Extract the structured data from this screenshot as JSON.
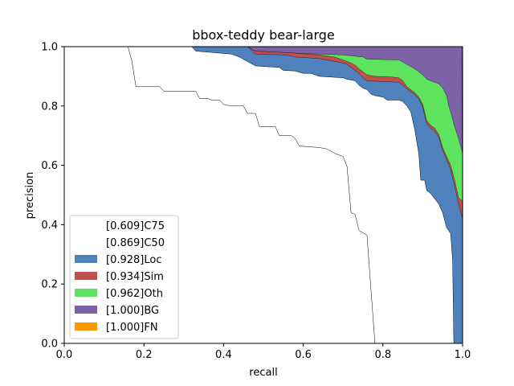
{
  "chart_data": {
    "type": "area",
    "title": "bbox-teddy bear-large",
    "xlabel": "recall",
    "ylabel": "precision",
    "xlim": [
      0,
      1
    ],
    "ylim": [
      0,
      1
    ],
    "xticks": [
      "0.0",
      "0.2",
      "0.4",
      "0.6",
      "0.8",
      "1.0"
    ],
    "yticks": [
      "0.0",
      "0.2",
      "0.4",
      "0.6",
      "0.8",
      "1.0"
    ],
    "legend_position": "lower-left",
    "grid": false,
    "series": [
      {
        "name": "[1.000]FN",
        "color": "#ff9900",
        "points": [
          [
            0,
            1
          ],
          [
            1,
            1
          ]
        ]
      },
      {
        "name": "[1.000]BG",
        "color": "#7d62a8",
        "points": [
          [
            0,
            1
          ],
          [
            0.46,
            1
          ],
          [
            0.998,
            1
          ],
          [
            0.999,
            0.64
          ],
          [
            1,
            0.64
          ],
          [
            1,
            0
          ]
        ]
      },
      {
        "name": "[0.962]Oth",
        "color": "#5ee35e",
        "points": [
          [
            0,
            1
          ],
          [
            0.46,
            1
          ],
          [
            0.48,
            0.985
          ],
          [
            0.56,
            0.98
          ],
          [
            0.58,
            0.978
          ],
          [
            0.64,
            0.975
          ],
          [
            0.7,
            0.972
          ],
          [
            0.73,
            0.968
          ],
          [
            0.75,
            0.965
          ],
          [
            0.76,
            0.958
          ],
          [
            0.84,
            0.955
          ],
          [
            0.85,
            0.948
          ],
          [
            0.86,
            0.94
          ],
          [
            0.87,
            0.933
          ],
          [
            0.88,
            0.925
          ],
          [
            0.89,
            0.915
          ],
          [
            0.9,
            0.905
          ],
          [
            0.91,
            0.89
          ],
          [
            0.94,
            0.875
          ],
          [
            0.95,
            0.86
          ],
          [
            0.96,
            0.835
          ],
          [
            0.965,
            0.8
          ],
          [
            0.97,
            0.78
          ],
          [
            0.98,
            0.73
          ],
          [
            0.99,
            0.69
          ],
          [
            1,
            0.64
          ]
        ]
      },
      {
        "name": "[0.934]Sim",
        "color": "#c0504d",
        "points": [
          [
            0,
            1
          ],
          [
            0.46,
            1
          ],
          [
            0.48,
            0.985
          ],
          [
            0.56,
            0.98
          ],
          [
            0.58,
            0.978
          ],
          [
            0.64,
            0.972
          ],
          [
            0.68,
            0.965
          ],
          [
            0.69,
            0.96
          ],
          [
            0.7,
            0.955
          ],
          [
            0.71,
            0.95
          ],
          [
            0.72,
            0.945
          ],
          [
            0.73,
            0.938
          ],
          [
            0.74,
            0.925
          ],
          [
            0.75,
            0.915
          ],
          [
            0.76,
            0.905
          ],
          [
            0.78,
            0.9
          ],
          [
            0.82,
            0.898
          ],
          [
            0.84,
            0.895
          ],
          [
            0.85,
            0.885
          ],
          [
            0.86,
            0.865
          ],
          [
            0.87,
            0.855
          ],
          [
            0.88,
            0.845
          ],
          [
            0.89,
            0.83
          ],
          [
            0.9,
            0.805
          ],
          [
            0.91,
            0.75
          ],
          [
            0.92,
            0.735
          ],
          [
            0.93,
            0.725
          ],
          [
            0.94,
            0.705
          ],
          [
            0.95,
            0.66
          ],
          [
            0.96,
            0.63
          ],
          [
            0.97,
            0.6
          ],
          [
            0.98,
            0.55
          ],
          [
            0.99,
            0.49
          ],
          [
            1,
            0.48
          ]
        ]
      },
      {
        "name": "[0.928]Loc",
        "color": "#4f81bd",
        "points": [
          [
            0,
            1
          ],
          [
            0.46,
            1
          ],
          [
            0.48,
            0.975
          ],
          [
            0.56,
            0.972
          ],
          [
            0.58,
            0.965
          ],
          [
            0.64,
            0.96
          ],
          [
            0.68,
            0.95
          ],
          [
            0.7,
            0.945
          ],
          [
            0.71,
            0.94
          ],
          [
            0.72,
            0.93
          ],
          [
            0.73,
            0.92
          ],
          [
            0.74,
            0.91
          ],
          [
            0.75,
            0.895
          ],
          [
            0.76,
            0.885
          ],
          [
            0.84,
            0.88
          ],
          [
            0.85,
            0.87
          ],
          [
            0.86,
            0.858
          ],
          [
            0.87,
            0.848
          ],
          [
            0.88,
            0.838
          ],
          [
            0.89,
            0.825
          ],
          [
            0.9,
            0.795
          ],
          [
            0.91,
            0.74
          ],
          [
            0.92,
            0.725
          ],
          [
            0.93,
            0.715
          ],
          [
            0.94,
            0.695
          ],
          [
            0.95,
            0.65
          ],
          [
            0.96,
            0.62
          ],
          [
            0.97,
            0.585
          ],
          [
            0.98,
            0.53
          ],
          [
            0.99,
            0.47
          ],
          [
            1,
            0.42
          ]
        ]
      },
      {
        "name": "[0.869]C50",
        "color": "#ffffff",
        "points": [
          [
            0,
            1
          ],
          [
            0.32,
            1
          ],
          [
            0.33,
            0.985
          ],
          [
            0.42,
            0.975
          ],
          [
            0.44,
            0.965
          ],
          [
            0.46,
            0.95
          ],
          [
            0.48,
            0.935
          ],
          [
            0.54,
            0.93
          ],
          [
            0.55,
            0.92
          ],
          [
            0.58,
            0.918
          ],
          [
            0.6,
            0.91
          ],
          [
            0.62,
            0.91
          ],
          [
            0.63,
            0.905
          ],
          [
            0.64,
            0.9
          ],
          [
            0.7,
            0.895
          ],
          [
            0.71,
            0.89
          ],
          [
            0.73,
            0.885
          ],
          [
            0.74,
            0.87
          ],
          [
            0.75,
            0.86
          ],
          [
            0.76,
            0.855
          ],
          [
            0.77,
            0.84
          ],
          [
            0.78,
            0.835
          ],
          [
            0.8,
            0.83
          ],
          [
            0.81,
            0.82
          ],
          [
            0.84,
            0.82
          ],
          [
            0.85,
            0.815
          ],
          [
            0.86,
            0.8
          ],
          [
            0.87,
            0.78
          ],
          [
            0.88,
            0.72
          ],
          [
            0.89,
            0.64
          ],
          [
            0.895,
            0.55
          ],
          [
            0.905,
            0.55
          ],
          [
            0.91,
            0.515
          ],
          [
            0.92,
            0.505
          ],
          [
            0.94,
            0.47
          ],
          [
            0.95,
            0.44
          ],
          [
            0.96,
            0.39
          ],
          [
            0.97,
            0.37
          ],
          [
            0.975,
            0.28
          ],
          [
            0.978,
            0.0
          ],
          [
            1,
            0
          ]
        ]
      },
      {
        "name": "[0.609]C75",
        "color": "#ffffff",
        "points": [
          [
            0,
            1
          ],
          [
            0.16,
            1
          ],
          [
            0.17,
            0.95
          ],
          [
            0.18,
            0.865
          ],
          [
            0.24,
            0.865
          ],
          [
            0.25,
            0.85
          ],
          [
            0.33,
            0.85
          ],
          [
            0.34,
            0.825
          ],
          [
            0.36,
            0.825
          ],
          [
            0.37,
            0.82
          ],
          [
            0.39,
            0.82
          ],
          [
            0.4,
            0.805
          ],
          [
            0.42,
            0.8
          ],
          [
            0.45,
            0.8
          ],
          [
            0.46,
            0.775
          ],
          [
            0.48,
            0.775
          ],
          [
            0.49,
            0.73
          ],
          [
            0.53,
            0.73
          ],
          [
            0.54,
            0.7
          ],
          [
            0.57,
            0.7
          ],
          [
            0.58,
            0.69
          ],
          [
            0.59,
            0.665
          ],
          [
            0.64,
            0.66
          ],
          [
            0.66,
            0.655
          ],
          [
            0.68,
            0.64
          ],
          [
            0.7,
            0.63
          ],
          [
            0.71,
            0.595
          ],
          [
            0.72,
            0.44
          ],
          [
            0.73,
            0.435
          ],
          [
            0.74,
            0.38
          ],
          [
            0.76,
            0.365
          ],
          [
            0.77,
            0.18
          ],
          [
            0.78,
            0.0
          ],
          [
            1,
            0
          ]
        ]
      }
    ]
  }
}
